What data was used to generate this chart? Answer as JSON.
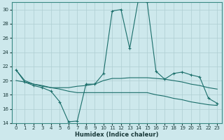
{
  "bg_color": "#cde8ec",
  "grid_color": "#aecdd2",
  "line_color": "#1a6e6a",
  "xlabel": "Humidex (Indice chaleur)",
  "xlim": [
    -0.5,
    23.5
  ],
  "ylim": [
    14,
    31
  ],
  "yticks": [
    14,
    16,
    18,
    20,
    22,
    24,
    26,
    28,
    30
  ],
  "xticks": [
    0,
    1,
    2,
    3,
    4,
    5,
    6,
    7,
    8,
    9,
    10,
    11,
    12,
    13,
    14,
    15,
    16,
    17,
    18,
    19,
    20,
    21,
    22,
    23
  ],
  "line1_x": [
    0,
    1,
    2,
    3,
    4,
    5,
    6,
    7,
    8,
    9,
    10,
    11,
    12,
    13,
    14,
    15,
    16,
    17,
    18,
    19,
    20,
    21,
    22,
    23
  ],
  "line1_y": [
    21.5,
    20.0,
    19.5,
    19.2,
    19.0,
    19.0,
    19.0,
    19.2,
    19.3,
    19.5,
    20.0,
    20.3,
    20.3,
    20.4,
    20.4,
    20.4,
    20.3,
    20.2,
    20.0,
    19.8,
    19.5,
    19.3,
    19.0,
    18.8
  ],
  "line2_x": [
    0,
    1,
    2,
    3,
    4,
    5,
    6,
    7,
    8,
    9,
    10,
    11,
    12,
    13,
    14,
    15,
    16,
    17,
    18,
    19,
    20,
    21,
    22,
    23
  ],
  "line2_y": [
    20.0,
    19.8,
    19.5,
    19.3,
    19.0,
    18.8,
    18.5,
    18.3,
    18.3,
    18.3,
    18.3,
    18.3,
    18.3,
    18.3,
    18.3,
    18.3,
    18.0,
    17.8,
    17.5,
    17.3,
    17.0,
    16.8,
    16.6,
    16.5
  ],
  "line3_x": [
    0,
    1,
    2,
    3,
    4,
    5,
    6,
    7,
    8,
    9,
    10,
    11,
    12,
    13,
    14,
    15,
    16,
    17,
    18,
    19,
    20,
    21,
    22,
    23
  ],
  "line3_y": [
    21.5,
    19.8,
    19.3,
    19.0,
    18.5,
    17.0,
    14.2,
    14.3,
    19.5,
    19.5,
    21.0,
    29.8,
    30.0,
    24.5,
    31.5,
    31.0,
    21.3,
    20.2,
    21.0,
    21.2,
    20.8,
    20.5,
    17.5,
    16.8
  ],
  "line3_markers_x": [
    0,
    1,
    2,
    3,
    4,
    5,
    6,
    7,
    8,
    9,
    10,
    11,
    12,
    13,
    14,
    15,
    16,
    17,
    18,
    19,
    20,
    21,
    22,
    23
  ],
  "line3_markers_y": [
    21.5,
    19.8,
    19.3,
    19.0,
    18.5,
    17.0,
    14.2,
    14.3,
    19.5,
    19.5,
    21.0,
    29.8,
    30.0,
    24.5,
    31.5,
    31.0,
    21.3,
    20.2,
    21.0,
    21.2,
    20.8,
    20.5,
    17.5,
    16.8
  ],
  "figsize": [
    3.2,
    2.0
  ],
  "dpi": 100
}
